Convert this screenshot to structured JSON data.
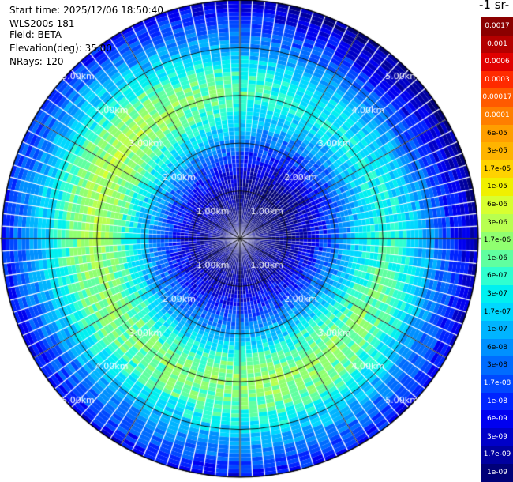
{
  "header": {
    "start_time": "Start time: 2025/12/06 18:50:40",
    "instrument": "WLS200s-181",
    "field": "Field: BETA",
    "elevation": "Elevation(deg): 35.00",
    "nrays": "NRays: 120"
  },
  "colorbar": {
    "unit_label": "-1 sr-",
    "ticks": [
      "0.0017",
      "0.001",
      "0.0006",
      "0.0003",
      "0.00017",
      "0.0001",
      "6e-05",
      "3e-05",
      "1.7e-05",
      "1e-05",
      "6e-06",
      "3e-06",
      "1.7e-06",
      "1e-06",
      "6e-07",
      "3e-07",
      "1.7e-07",
      "1e-07",
      "6e-08",
      "3e-08",
      "1.7e-08",
      "1e-08",
      "6e-09",
      "3e-09",
      "1.7e-09",
      "1e-09"
    ],
    "colors": [
      "#8b0000",
      "#b40000",
      "#e00000",
      "#ff2a00",
      "#ff5a00",
      "#ff7e00",
      "#ff9e00",
      "#ffb400",
      "#ffd200",
      "#f0f000",
      "#d8ff30",
      "#b8ff50",
      "#90ff70",
      "#60ffa0",
      "#30ffd0",
      "#00f0f0",
      "#00d8ff",
      "#00b4ff",
      "#0090ff",
      "#006cff",
      "#0048ff",
      "#0024ff",
      "#0000f0",
      "#0000c8",
      "#0000a0",
      "#000078"
    ],
    "text_colors": [
      "#ffffff",
      "#ffffff",
      "#ffffff",
      "#ffffff",
      "#ffffff",
      "#ffffff",
      "#000000",
      "#000000",
      "#000000",
      "#000000",
      "#000000",
      "#000000",
      "#000000",
      "#000000",
      "#000000",
      "#000000",
      "#000000",
      "#000000",
      "#000000",
      "#000000",
      "#ffffff",
      "#ffffff",
      "#ffffff",
      "#ffffff",
      "#ffffff",
      "#ffffff"
    ]
  },
  "chart_data": {
    "type": "ppi_polar_heatmap",
    "field": "BETA",
    "elevation_deg": 35.0,
    "n_rays": 120,
    "range_rings_km": [
      1,
      2,
      3,
      4,
      5
    ],
    "max_range_km": 5.0,
    "range_ring_labels": [
      "1.00km",
      "2.00km",
      "3.00km",
      "4.00km",
      "5.00km"
    ],
    "log10_beta_profile": {
      "range_km": [
        0.0,
        0.5,
        1.0,
        1.5,
        2.0,
        2.5,
        3.0,
        3.5,
        4.0,
        4.5,
        5.0
      ],
      "log10_value": [
        -9.0,
        -8.8,
        -8.6,
        -8.0,
        -7.2,
        -6.4,
        -5.9,
        -6.2,
        -6.9,
        -7.6,
        -8.3
      ]
    },
    "scale": "log",
    "vmin": 1e-09,
    "vmax": 0.0017
  }
}
